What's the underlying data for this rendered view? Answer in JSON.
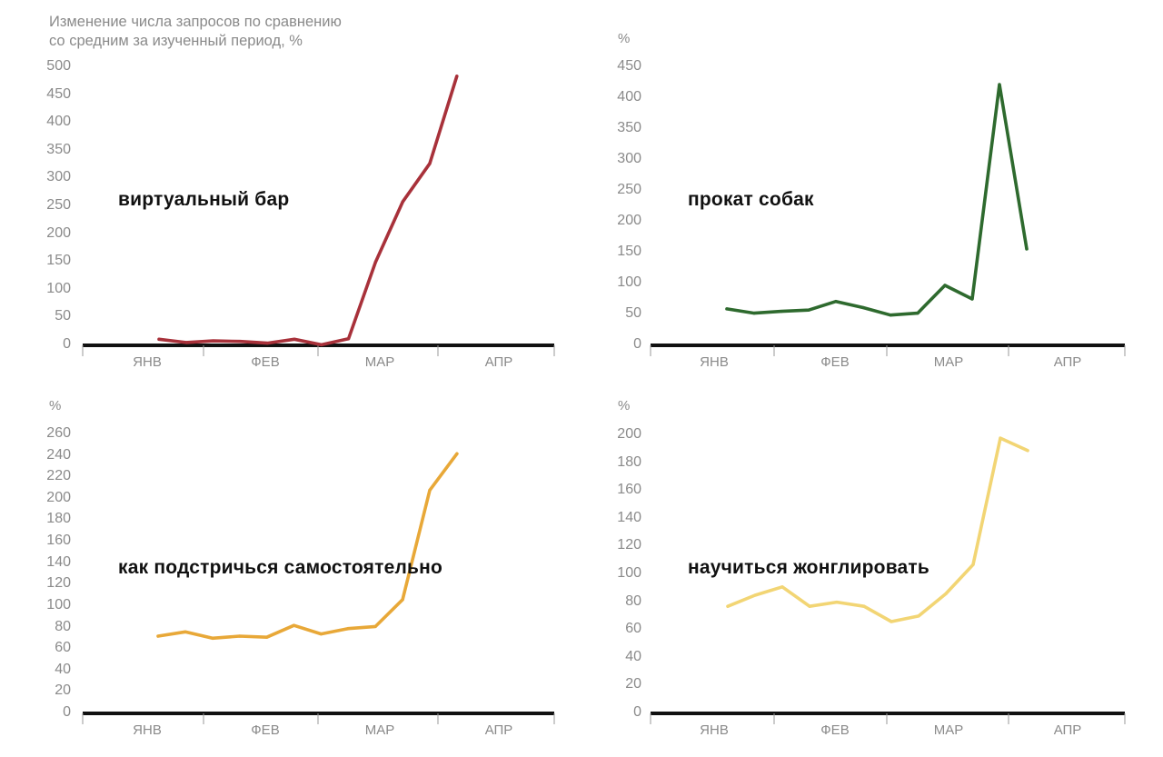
{
  "chart_data": [
    {
      "type": "line",
      "title": "Изменение числа запросов по сравнению со средним за изученный период, %",
      "title_lines": [
        "Изменение числа запросов по сравнению",
        "со средним за изученный период, %"
      ],
      "unit_label": "",
      "series_name": "виртуальный бар",
      "color": "#A8313A",
      "ylim": [
        0,
        500
      ],
      "yticks": [
        0,
        50,
        100,
        150,
        200,
        250,
        300,
        350,
        400,
        450,
        500
      ],
      "xticks": [
        "ЯНВ",
        "ФЕВ",
        "МАР",
        "АПР"
      ],
      "values": [
        11,
        5,
        8,
        7,
        4,
        11,
        1,
        12,
        150,
        258,
        327,
        484
      ]
    },
    {
      "type": "line",
      "title": "",
      "unit_label": "%",
      "series_name": "прокат собак",
      "color": "#2E6A2E",
      "ylim": [
        0,
        450
      ],
      "yticks": [
        0,
        50,
        100,
        150,
        200,
        250,
        300,
        350,
        400,
        450
      ],
      "xticks": [
        "ЯНВ",
        "ФЕВ",
        "МАР",
        "АПР"
      ],
      "values": [
        59,
        52,
        55,
        57,
        71,
        61,
        49,
        52,
        97,
        75,
        422,
        156
      ]
    },
    {
      "type": "line",
      "title": "",
      "unit_label": "%",
      "series_name": "как подстричься самостоятельно",
      "color": "#E8A838",
      "ylim": [
        0,
        260
      ],
      "yticks": [
        0,
        20,
        40,
        60,
        80,
        100,
        120,
        140,
        160,
        180,
        200,
        220,
        240,
        260
      ],
      "xticks": [
        "ЯНВ",
        "ФЕВ",
        "МАР",
        "АПР"
      ],
      "values": [
        72,
        76,
        70,
        72,
        71,
        82,
        74,
        79,
        81,
        106,
        208,
        242
      ]
    },
    {
      "type": "line",
      "title": "",
      "unit_label": "%",
      "series_name": "научиться жонглировать",
      "color": "#F2D574",
      "ylim": [
        0,
        200
      ],
      "yticks": [
        0,
        20,
        40,
        60,
        80,
        100,
        120,
        140,
        160,
        180,
        200
      ],
      "xticks": [
        "ЯНВ",
        "ФЕВ",
        "МАР",
        "АПР"
      ],
      "values": [
        77,
        85,
        91,
        77,
        80,
        77,
        66,
        70,
        86,
        107,
        198,
        189
      ]
    }
  ]
}
